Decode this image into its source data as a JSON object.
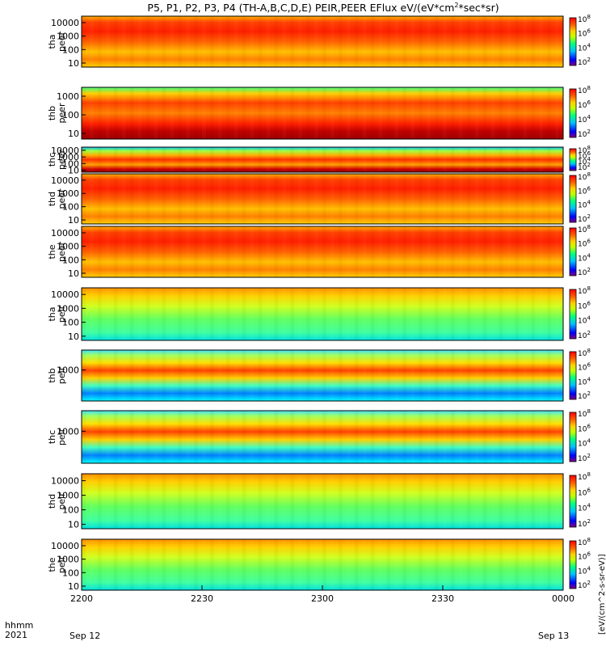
{
  "chart_data": {
    "type": "heatmap",
    "title": "P5, P1, P2, P3, P4 (TH-A,B,C,D,E) PEIR,PEER EFlux eV/(eV*cm",
    "title_sup": "2",
    "title_end": "*sec*sr)",
    "time_axis": {
      "ticks": [
        "2200",
        "2230",
        "2300",
        "2330",
        "0000"
      ],
      "start_date": "Sep 12",
      "end_date": "Sep 13",
      "label_top": "hhmm",
      "label_bottom": "2021",
      "range": [
        "2021-09-12 22:00",
        "2021-09-13 00:00"
      ]
    },
    "colorbar": {
      "ticks": [
        "10",
        "10",
        "10",
        "10"
      ],
      "tick_exponents": [
        "2",
        "4",
        "6",
        "8"
      ],
      "label": "[eV/(cm^2-s-sr-eV)]",
      "colors": [
        "#000080",
        "#0000ff",
        "#0080ff",
        "#00ffff",
        "#80ff80",
        "#ffff00",
        "#ff8000",
        "#ff0000",
        "#800000"
      ]
    },
    "panels": [
      {
        "probe": "tha",
        "species": "peer",
        "yticks": [
          "10000",
          "1000",
          "100",
          "10"
        ],
        "ylim": [
          5,
          30000
        ],
        "scale": "log"
      },
      {
        "probe": "thb",
        "species": "peer",
        "yticks": [
          "1000",
          "100",
          "10"
        ],
        "ylim": [
          5,
          3000
        ],
        "scale": "log"
      },
      {
        "probe": "thc",
        "species": "peer",
        "yticks": [
          "10000",
          "1000",
          "100",
          "10"
        ],
        "ylim": [
          5,
          30000
        ],
        "scale": "log"
      },
      {
        "probe": "thd",
        "species": "peer",
        "yticks": [
          "10000",
          "1000",
          "100",
          "10"
        ],
        "ylim": [
          5,
          30000
        ],
        "scale": "log"
      },
      {
        "probe": "the",
        "species": "peer",
        "yticks": [
          "10000",
          "1000",
          "100",
          "10"
        ],
        "ylim": [
          5,
          30000
        ],
        "scale": "log"
      },
      {
        "probe": "tha",
        "species": "peir",
        "yticks": [
          "10000",
          "1000",
          "100",
          "10"
        ],
        "ylim": [
          5,
          30000
        ],
        "scale": "log"
      },
      {
        "probe": "thb",
        "species": "peir",
        "yticks": [
          "1000"
        ],
        "ylim": [
          5,
          30000
        ],
        "scale": "log"
      },
      {
        "probe": "thc",
        "species": "peir",
        "yticks": [
          "1000"
        ],
        "ylim": [
          5,
          30000
        ],
        "scale": "log"
      },
      {
        "probe": "thd",
        "species": "peir",
        "yticks": [
          "10000",
          "1000",
          "100",
          "10"
        ],
        "ylim": [
          5,
          30000
        ],
        "scale": "log"
      },
      {
        "probe": "the",
        "species": "peir",
        "yticks": [
          "10000",
          "1000",
          "100",
          "10"
        ],
        "ylim": [
          5,
          30000
        ],
        "scale": "log"
      }
    ]
  }
}
